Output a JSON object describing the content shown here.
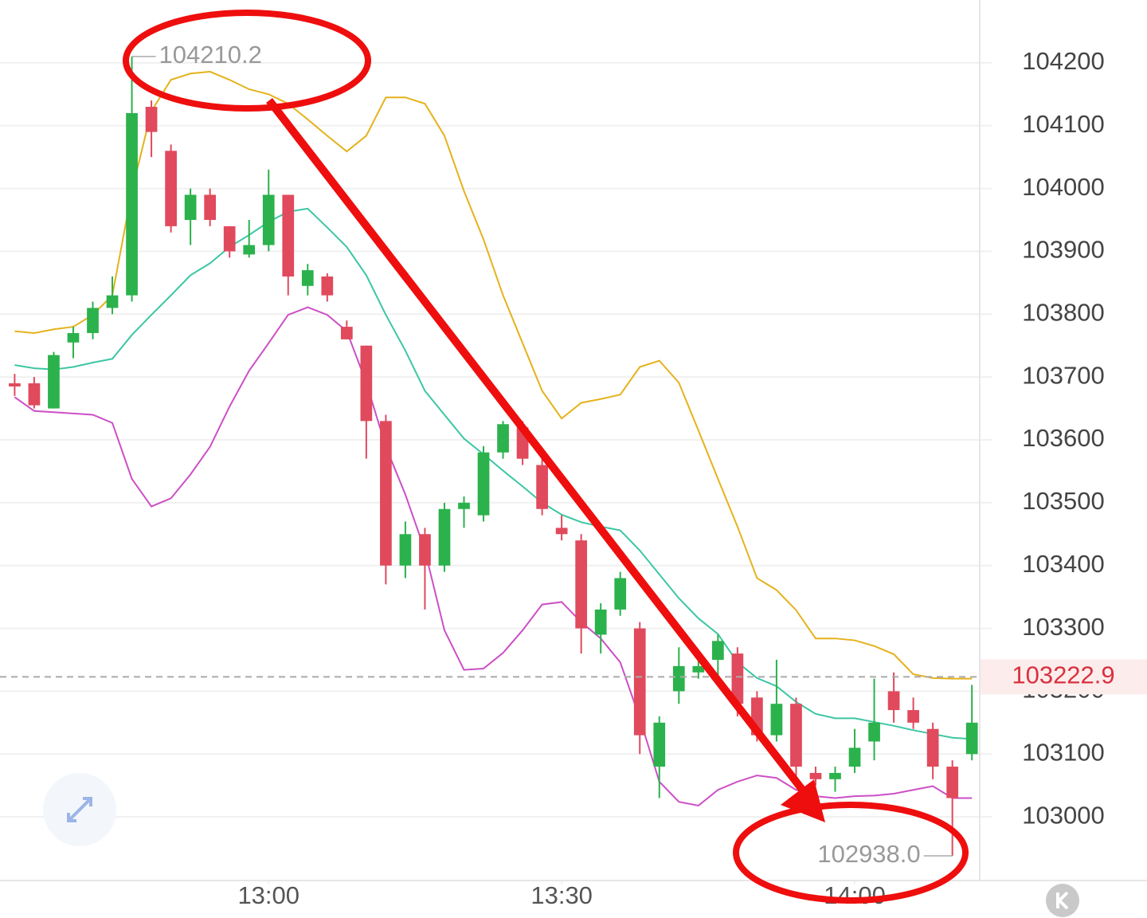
{
  "chart_data": {
    "type": "candlestick",
    "x": [
      754,
      756,
      758,
      760,
      762,
      764,
      766,
      768,
      770,
      772,
      774,
      776,
      778,
      780,
      782,
      784,
      786,
      788,
      790,
      792,
      794,
      796,
      798,
      800,
      802,
      804,
      806,
      808,
      810,
      812,
      814,
      816,
      818,
      820,
      822,
      824,
      826,
      828,
      830,
      832,
      834,
      836,
      838,
      840,
      842,
      844,
      846,
      848,
      850,
      852
    ],
    "candles": {
      "open": [
        103690,
        103690,
        103650,
        103755,
        103770,
        103810,
        103830,
        104130,
        104060,
        103950,
        103990,
        103940,
        103895,
        103910,
        103990,
        103845,
        103860,
        103780,
        103750,
        103630,
        103400,
        103450,
        103400,
        103490,
        103480,
        103580,
        103620,
        103560,
        103460,
        103440,
        103290,
        103330,
        103300,
        103080,
        103200,
        103230,
        103250,
        103260,
        103190,
        103130,
        103180,
        103070,
        103060,
        103080,
        103120,
        103200,
        103170,
        103140,
        103080,
        103100
      ],
      "high": [
        103705,
        103700,
        103740,
        103780,
        103820,
        103860,
        104210.2,
        104140,
        104070,
        104000,
        104000,
        103940,
        103950,
        104030,
        103990,
        103880,
        103865,
        103790,
        103750,
        103640,
        103470,
        103460,
        103500,
        103510,
        103590,
        103630,
        103630,
        103570,
        103480,
        103450,
        103340,
        103390,
        103310,
        103160,
        103270,
        103250,
        103290,
        103270,
        103200,
        103250,
        103190,
        103080,
        103080,
        103140,
        103220,
        103230,
        103190,
        103150,
        103090,
        103210
      ],
      "low": [
        103670,
        103650,
        103650,
        103730,
        103760,
        103800,
        103820,
        104050,
        103930,
        103910,
        103940,
        103890,
        103890,
        103900,
        103830,
        103830,
        103820,
        103760,
        103570,
        103370,
        103380,
        103330,
        103390,
        103460,
        103470,
        103570,
        103560,
        103480,
        103440,
        103260,
        103260,
        103320,
        103100,
        103030,
        103180,
        103220,
        103220,
        103160,
        103120,
        103120,
        103060,
        103050,
        103040,
        103070,
        103090,
        103150,
        103140,
        103060,
        102938.0,
        103090
      ],
      "close": [
        103685,
        103655,
        103735,
        103770,
        103810,
        103830,
        104120,
        104090,
        103940,
        103990,
        103950,
        103900,
        103910,
        103990,
        103860,
        103870,
        103830,
        103760,
        103630,
        103400,
        103450,
        103400,
        103490,
        103500,
        103580,
        103625,
        103570,
        103490,
        103450,
        103300,
        103330,
        103380,
        103130,
        103150,
        103240,
        103240,
        103280,
        103180,
        103130,
        103180,
        103080,
        103060,
        103070,
        103110,
        103150,
        103170,
        103150,
        103080,
        103030,
        103150
      ]
    },
    "up_color": "#2bb24c",
    "down_color": "#e04a5c",
    "series": [
      {
        "color": "#e5b21c",
        "values": [
          103773,
          103770,
          103776,
          103780,
          103799,
          103830,
          103996,
          104123,
          104173,
          104183,
          104186,
          104173,
          104158,
          104150,
          104135,
          104110,
          104084,
          104059,
          104084,
          104145,
          104145,
          104135,
          104084,
          103996,
          103919,
          103830,
          103754,
          103678,
          103634,
          103659,
          103665,
          103672,
          103716,
          103726,
          103691,
          103615,
          103538,
          103462,
          103380,
          103361,
          103329,
          103284,
          103284,
          103281,
          103272,
          103259,
          103227,
          103221,
          103220,
          103220
        ]
      },
      {
        "color": "#3cc6a4",
        "values": [
          103719,
          103714,
          103712,
          103716,
          103723,
          103729,
          103767,
          103799,
          103830,
          103862,
          103881,
          103907,
          103926,
          103947,
          103963,
          103968,
          103938,
          103907,
          103862,
          103799,
          103742,
          103678,
          103640,
          103602,
          103577,
          103551,
          103526,
          103500,
          103481,
          103469,
          103462,
          103456,
          103424,
          103386,
          103348,
          103316,
          103291,
          103246,
          103221,
          103208,
          103183,
          103164,
          103157,
          103157,
          103151,
          103145,
          103138,
          103132,
          103126,
          103124
        ]
      },
      {
        "color": "#cc4fc6",
        "values": [
          103668,
          103646,
          103644,
          103642,
          103640,
          103627,
          103538,
          103494,
          103507,
          103545,
          103589,
          103653,
          103710,
          103754,
          103799,
          103811,
          103799,
          103773,
          103691,
          103589,
          103513,
          103424,
          103297,
          103234,
          103236,
          103261,
          103297,
          103338,
          103342,
          103310,
          103284,
          103246,
          103157,
          103056,
          103024,
          103018,
          103043,
          103056,
          103066,
          103062,
          103043,
          103033,
          103030,
          103033,
          103034,
          103037,
          103043,
          103049,
          103030,
          103030
        ]
      }
    ],
    "xlim": [
      752.5,
      852.8
    ],
    "xticks": [
      {
        "value": 780,
        "label": "13:00"
      },
      {
        "value": 810,
        "label": "13:30"
      },
      {
        "value": 840,
        "label": "14:00"
      }
    ],
    "ylim": [
      102900,
      104300
    ],
    "yticks": [
      103000,
      103100,
      103200,
      103300,
      103400,
      103500,
      103600,
      103700,
      103800,
      103900,
      104000,
      104100,
      104200
    ],
    "grid": true,
    "last_price": 103222.9,
    "extreme_labels": {
      "high": "104210.2",
      "low": "102938.0"
    }
  }
}
